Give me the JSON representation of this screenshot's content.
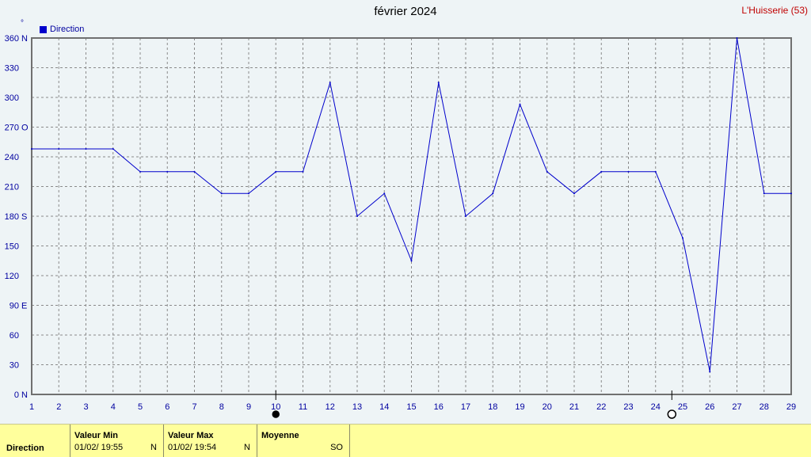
{
  "header": {
    "title": "février 2024",
    "station": "L'Huisserie (53)",
    "unit_symbol": "°"
  },
  "legend": {
    "label": "Direction"
  },
  "chart_data": {
    "type": "line",
    "title": "février 2024",
    "xlabel": "",
    "ylabel": "°",
    "x": [
      1,
      2,
      3,
      4,
      5,
      6,
      7,
      8,
      9,
      10,
      11,
      12,
      13,
      14,
      15,
      16,
      17,
      18,
      19,
      20,
      21,
      22,
      23,
      24,
      25,
      26,
      27,
      28,
      29
    ],
    "series": [
      {
        "name": "Direction",
        "color": "#0000cc",
        "values": [
          248,
          248,
          248,
          248,
          225,
          225,
          225,
          203,
          203,
          225,
          225,
          315,
          180,
          203,
          135,
          315,
          180,
          203,
          293,
          225,
          203,
          225,
          225,
          225,
          158,
          23,
          360,
          203,
          203
        ]
      }
    ],
    "ylim": [
      0,
      360
    ],
    "xlim": [
      1,
      29
    ],
    "y_ticks": [
      "0",
      "30",
      "60",
      "90",
      "120",
      "150",
      "180",
      "210",
      "240",
      "270",
      "300",
      "330",
      "360"
    ],
    "y_cardinals": [
      {
        "value": 0,
        "label": "N"
      },
      {
        "value": 90,
        "label": "E"
      },
      {
        "value": 180,
        "label": "S"
      },
      {
        "value": 270,
        "label": "O"
      },
      {
        "value": 360,
        "label": "N"
      }
    ],
    "x_ticks": [
      "1",
      "2",
      "3",
      "4",
      "5",
      "6",
      "7",
      "8",
      "9",
      "10",
      "11",
      "12",
      "13",
      "14",
      "15",
      "16",
      "17",
      "18",
      "19",
      "20",
      "21",
      "22",
      "23",
      "24",
      "25",
      "26",
      "27",
      "28",
      "29"
    ],
    "grid": true,
    "moon_phases": [
      {
        "day": 10,
        "phase": "new"
      },
      {
        "day": 24.6,
        "phase": "full"
      }
    ]
  },
  "footer": {
    "row_label": "Direction",
    "min": {
      "header": "Valeur Min",
      "date": "01/02/  19:55",
      "value": "N"
    },
    "max": {
      "header": "Valeur Max",
      "date": "01/02/  19:54",
      "value": "N"
    },
    "mean": {
      "header": "Moyenne",
      "value": "SO"
    }
  }
}
